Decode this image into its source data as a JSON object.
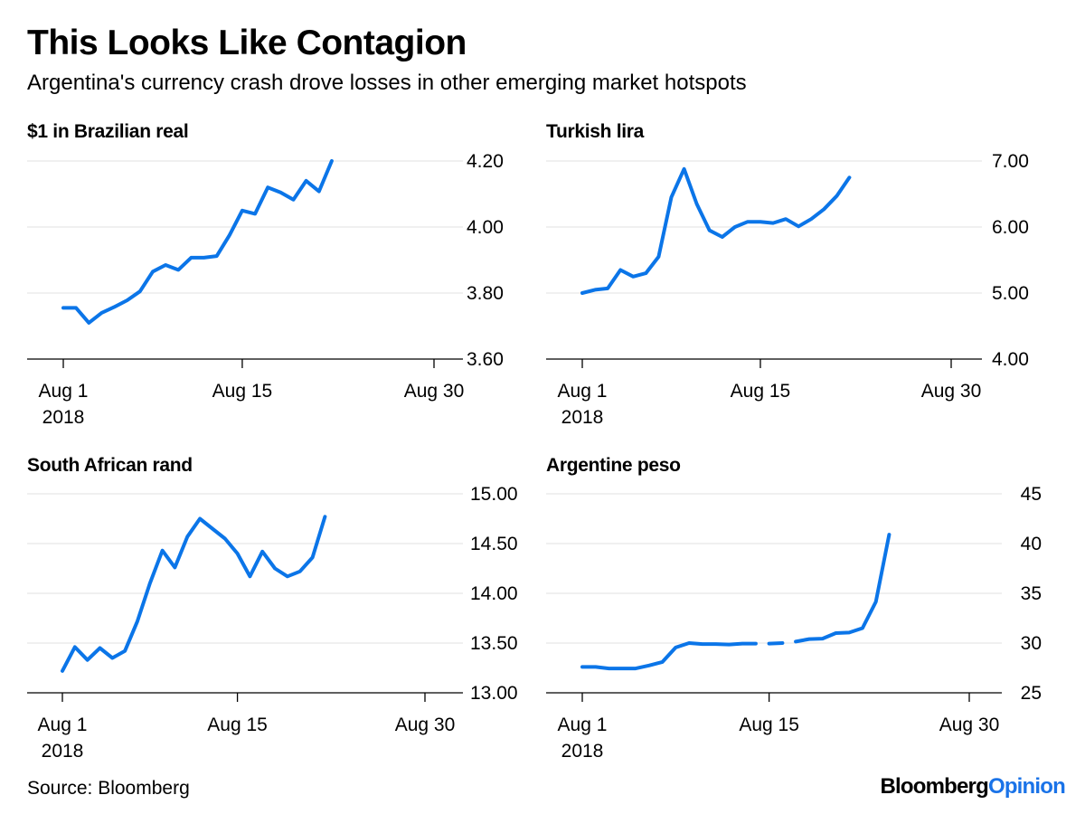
{
  "title": "This Looks Like Contagion",
  "subtitle": "Argentina's currency crash drove losses in other emerging market hotspots",
  "source": "Source: Bloomberg",
  "brand": {
    "part1": "Bloomberg",
    "part2": "Opinion"
  },
  "colors": {
    "line": "#0b75e8",
    "grid": "#e6e6e6",
    "axis": "#000000"
  },
  "chart_data": [
    {
      "type": "line",
      "title": "$1 in Brazilian real",
      "x_range": [
        1,
        30
      ],
      "x_ticks": [
        {
          "value": 1,
          "label": "Aug 1",
          "sublabel": "2018"
        },
        {
          "value": 15,
          "label": "Aug 15"
        },
        {
          "value": 30,
          "label": "Aug 30"
        }
      ],
      "ylim": [
        3.6,
        4.2
      ],
      "y_ticks": [
        {
          "value": 4.2,
          "label": "4.20"
        },
        {
          "value": 4.0,
          "label": "4.00"
        },
        {
          "value": 3.8,
          "label": "3.80"
        },
        {
          "value": 3.6,
          "label": "3.60"
        }
      ],
      "segments": [
        [
          [
            1,
            3.755
          ],
          [
            2,
            3.755
          ],
          [
            3,
            3.71
          ],
          [
            4,
            3.74
          ],
          [
            5,
            3.758
          ],
          [
            6,
            3.778
          ],
          [
            7,
            3.805
          ],
          [
            8,
            3.865
          ],
          [
            9,
            3.885
          ],
          [
            10,
            3.87
          ],
          [
            11,
            3.907
          ],
          [
            12,
            3.907
          ],
          [
            13,
            3.912
          ],
          [
            14,
            3.975
          ],
          [
            15,
            4.05
          ],
          [
            16,
            4.04
          ],
          [
            17,
            4.12
          ],
          [
            18,
            4.105
          ],
          [
            19,
            4.083
          ],
          [
            20,
            4.14
          ],
          [
            21,
            4.108
          ],
          [
            22,
            4.2
          ]
        ]
      ]
    },
    {
      "type": "line",
      "title": "Turkish lira",
      "x_range": [
        1,
        30
      ],
      "x_ticks": [
        {
          "value": 1,
          "label": "Aug 1",
          "sublabel": "2018"
        },
        {
          "value": 15,
          "label": "Aug 15"
        },
        {
          "value": 30,
          "label": "Aug 30"
        }
      ],
      "ylim": [
        4.0,
        7.0
      ],
      "y_ticks": [
        {
          "value": 7.0,
          "label": "7.00"
        },
        {
          "value": 6.0,
          "label": "6.00"
        },
        {
          "value": 5.0,
          "label": "5.00"
        },
        {
          "value": 4.0,
          "label": "4.00"
        }
      ],
      "segments": [
        [
          [
            1,
            5.0
          ],
          [
            2,
            5.05
          ],
          [
            3,
            5.07
          ],
          [
            4,
            5.35
          ],
          [
            5,
            5.25
          ],
          [
            6,
            5.3
          ],
          [
            7,
            5.55
          ],
          [
            8,
            6.45
          ],
          [
            9,
            6.88
          ],
          [
            10,
            6.35
          ],
          [
            11,
            5.95
          ],
          [
            12,
            5.85
          ],
          [
            13,
            6.0
          ],
          [
            14,
            6.08
          ],
          [
            15,
            6.08
          ],
          [
            16,
            6.06
          ],
          [
            17,
            6.12
          ],
          [
            18,
            6.01
          ],
          [
            19,
            6.12
          ],
          [
            20,
            6.27
          ],
          [
            21,
            6.47
          ],
          [
            22,
            6.75
          ]
        ]
      ]
    },
    {
      "type": "line",
      "title": "South African rand",
      "x_range": [
        1,
        30
      ],
      "x_ticks": [
        {
          "value": 1,
          "label": "Aug 1",
          "sublabel": "2018"
        },
        {
          "value": 15,
          "label": "Aug 15"
        },
        {
          "value": 30,
          "label": "Aug 30"
        }
      ],
      "ylim": [
        13.0,
        15.0
      ],
      "y_ticks": [
        {
          "value": 15.0,
          "label": "15.00"
        },
        {
          "value": 14.5,
          "label": "14.50"
        },
        {
          "value": 14.0,
          "label": "14.00"
        },
        {
          "value": 13.5,
          "label": "13.50"
        },
        {
          "value": 13.0,
          "label": "13.00"
        }
      ],
      "segments": [
        [
          [
            1,
            13.22
          ],
          [
            2,
            13.46
          ],
          [
            3,
            13.33
          ],
          [
            4,
            13.45
          ],
          [
            5,
            13.35
          ],
          [
            6,
            13.42
          ],
          [
            7,
            13.72
          ],
          [
            8,
            14.1
          ],
          [
            9,
            14.43
          ],
          [
            10,
            14.26
          ],
          [
            11,
            14.57
          ],
          [
            12,
            14.75
          ],
          [
            13,
            14.65
          ],
          [
            14,
            14.55
          ],
          [
            15,
            14.4
          ],
          [
            16,
            14.17
          ],
          [
            17,
            14.42
          ],
          [
            18,
            14.25
          ],
          [
            19,
            14.17
          ],
          [
            20,
            14.22
          ],
          [
            21,
            14.36
          ],
          [
            22,
            14.77
          ]
        ]
      ]
    },
    {
      "type": "line",
      "title": "Argentine peso",
      "x_range": [
        1,
        30
      ],
      "x_ticks": [
        {
          "value": 1,
          "label": "Aug 1",
          "sublabel": "2018"
        },
        {
          "value": 15,
          "label": "Aug 15"
        },
        {
          "value": 30,
          "label": "Aug 30"
        }
      ],
      "ylim": [
        25,
        45
      ],
      "y_ticks": [
        {
          "value": 45,
          "label": "45"
        },
        {
          "value": 40,
          "label": "40"
        },
        {
          "value": 35,
          "label": "35"
        },
        {
          "value": 30,
          "label": "30"
        },
        {
          "value": 25,
          "label": "25"
        }
      ],
      "segments": [
        [
          [
            1,
            27.6
          ],
          [
            2,
            27.6
          ],
          [
            3,
            27.45
          ],
          [
            4,
            27.45
          ],
          [
            5,
            27.45
          ],
          [
            6,
            27.75
          ],
          [
            7,
            28.1
          ],
          [
            8,
            29.55
          ],
          [
            9,
            30.0
          ],
          [
            10,
            29.9
          ],
          [
            11,
            29.9
          ],
          [
            12,
            29.85
          ],
          [
            13,
            29.95
          ],
          [
            14,
            29.95
          ]
        ],
        [
          [
            15,
            29.95
          ],
          [
            16,
            30.0
          ]
        ],
        [
          [
            17,
            30.15
          ],
          [
            18,
            30.4
          ],
          [
            19,
            30.45
          ],
          [
            20,
            31.0
          ],
          [
            21,
            31.05
          ],
          [
            22,
            31.5
          ],
          [
            23,
            34.15
          ],
          [
            24,
            40.9
          ]
        ]
      ]
    }
  ]
}
